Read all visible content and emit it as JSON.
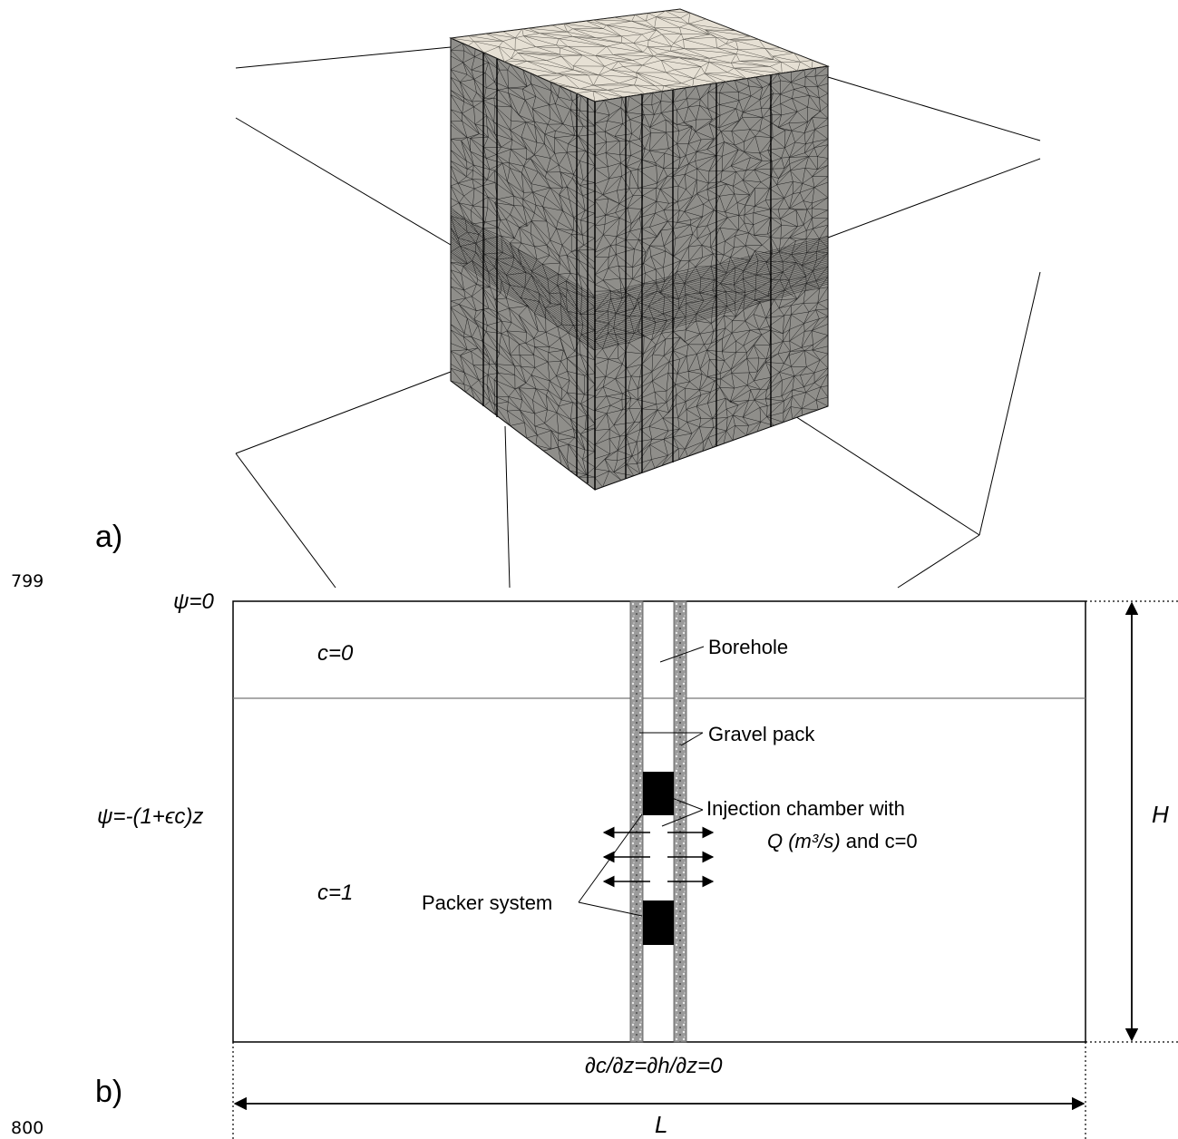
{
  "panel_a": {
    "label": "a)"
  },
  "panel_b": {
    "label": "b)",
    "line_numbers": [
      "799",
      "800"
    ],
    "top_boundary": "ψ=0",
    "upper_zone": "c=0",
    "lower_zone": "c=1",
    "side_boundary": "ψ=-(1+ϵc)z",
    "bottom_boundary": "∂c/∂z=∂h/∂z=0",
    "height_label": "H",
    "width_label": "L",
    "callouts": {
      "borehole": "Borehole",
      "gravel_pack": "Gravel pack",
      "injection_line1": "Injection chamber with",
      "injection_line2_a": "Q (m³/s)",
      "injection_line2_b": " and c=0",
      "packer": "Packer system"
    }
  },
  "colors": {
    "mesh_side": "#8f8e8a",
    "mesh_top": "#e6e0d4",
    "packer": "#000000",
    "gravel": "#7a7a7a"
  }
}
